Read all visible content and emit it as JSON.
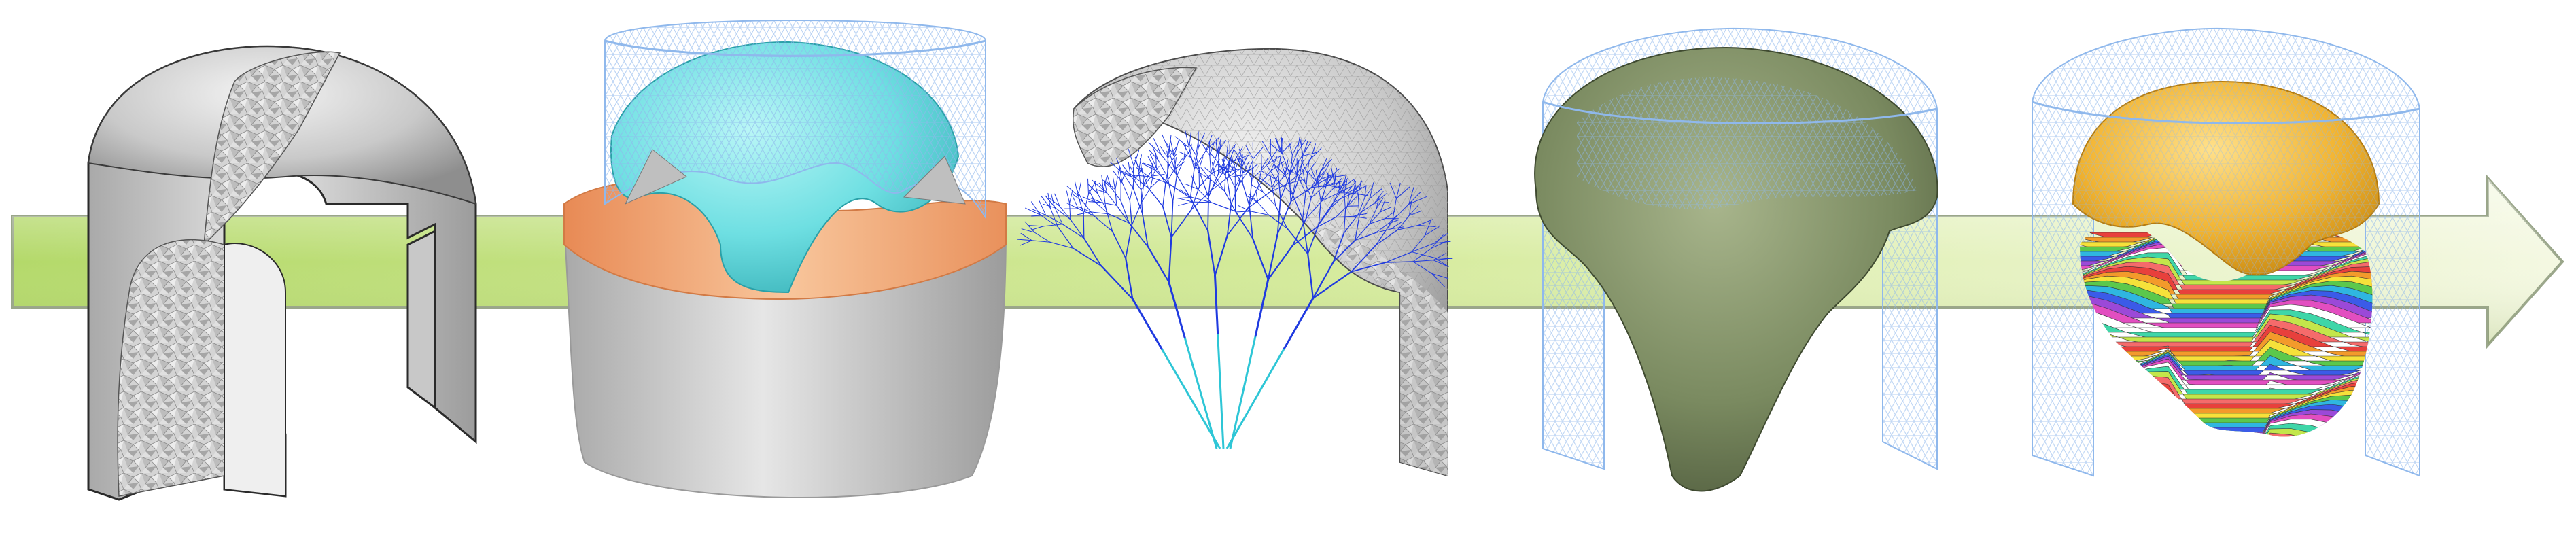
{
  "figure": {
    "arrow": {
      "color_light": "#f4f8e2",
      "color_dark": "#b4d96a",
      "outline": "#9aa68a"
    },
    "colors": {
      "shell_gray": "#cfcfcf",
      "wire_blue": "#8fb8ec",
      "dome_cyan": "#6edfe2",
      "rim_orange": "#f4a878",
      "tree_blue": "#1f3ae0",
      "tree_cyan": "#2ec6d6",
      "green_body": "#6f7f5a",
      "orange_dome": "#f2b431"
    },
    "steps": [
      {
        "id": "step-1",
        "icon": "cut-shell-mesh-icon"
      },
      {
        "id": "step-2",
        "icon": "layered-dome-icon"
      },
      {
        "id": "step-3",
        "icon": "tree-growth-icon"
      },
      {
        "id": "step-4",
        "icon": "green-body-wire-icon"
      },
      {
        "id": "step-5",
        "icon": "striped-body-wire-icon"
      }
    ],
    "stripe_palette": [
      "#e8403c",
      "#f39a2b",
      "#f6e13a",
      "#5bc84c",
      "#2fb6e0",
      "#3b5be8",
      "#9b49d8",
      "#e24ec0",
      "#ffffff",
      "#3fd6a8",
      "#c3e64a",
      "#f56b6b"
    ]
  }
}
